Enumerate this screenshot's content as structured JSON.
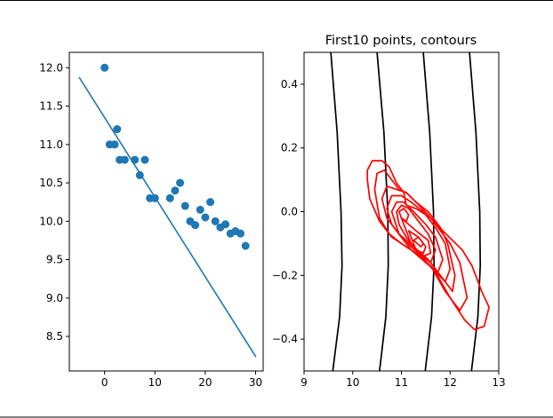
{
  "colors": {
    "background": "#ffffff",
    "frame": "#000000",
    "scatter": "#1f77b4",
    "fit_line": "#1f77b4",
    "contour_red": "#ff0000",
    "contour_black": "#000000"
  },
  "chart_data": [
    {
      "type": "scatter",
      "title": "",
      "xlabel": "",
      "ylabel": "",
      "xlim": [
        -7,
        31.5
      ],
      "ylim": [
        8.05,
        12.2
      ],
      "xticks": [
        "0",
        "10",
        "20",
        "30"
      ],
      "yticks": [
        "8.5",
        "9.0",
        "9.5",
        "10.0",
        "10.5",
        "11.0",
        "11.5",
        "12.0"
      ],
      "grid": false,
      "series": [
        {
          "kind": "scatter",
          "x": [
            0,
            1,
            2,
            2.5,
            3,
            4,
            6,
            7,
            8,
            9,
            10,
            13,
            14,
            15,
            16,
            17,
            18,
            19,
            20,
            21,
            22,
            23,
            24,
            25,
            26,
            27,
            28
          ],
          "y": [
            12.0,
            11.0,
            11.0,
            11.2,
            10.8,
            10.8,
            10.8,
            10.6,
            10.8,
            10.3,
            10.3,
            10.3,
            10.4,
            10.5,
            10.2,
            10.0,
            9.95,
            10.15,
            10.05,
            10.25,
            10.0,
            9.92,
            9.96,
            9.84,
            9.87,
            9.84,
            9.68
          ]
        },
        {
          "kind": "line",
          "x": [
            -5,
            30
          ],
          "y": [
            11.87,
            8.24
          ]
        }
      ]
    },
    {
      "type": "line",
      "subtype": "contour",
      "title": "First10 points, contours",
      "xlabel": "",
      "ylabel": "",
      "xlim": [
        9,
        13
      ],
      "ylim": [
        -0.5,
        0.5
      ],
      "xticks": [
        "9",
        "10",
        "11",
        "12",
        "13"
      ],
      "yticks": [
        "−0.4",
        "−0.2",
        "0.0",
        "0.2",
        "0.4"
      ],
      "grid": false,
      "series": [
        {
          "color": "black",
          "x": [
            9.55,
            9.68,
            9.76,
            9.78,
            9.73,
            9.59
          ],
          "y": [
            0.5,
            0.25,
            0.0,
            -0.17,
            -0.33,
            -0.5
          ]
        },
        {
          "color": "black",
          "x": [
            10.5,
            10.64,
            10.72,
            10.73,
            10.68,
            10.55
          ],
          "y": [
            0.5,
            0.25,
            0.0,
            -0.17,
            -0.33,
            -0.5
          ]
        },
        {
          "color": "black",
          "x": [
            11.45,
            11.58,
            11.66,
            11.67,
            11.62,
            11.49
          ],
          "y": [
            0.5,
            0.25,
            0.0,
            -0.17,
            -0.33,
            -0.5
          ]
        },
        {
          "color": "black",
          "x": [
            12.4,
            12.53,
            12.61,
            12.62,
            12.57,
            12.44
          ],
          "y": [
            0.5,
            0.25,
            0.0,
            -0.17,
            -0.33,
            -0.5
          ]
        },
        {
          "color": "red",
          "x": [
            10.3,
            10.3,
            10.4,
            10.6,
            10.75,
            10.9,
            11.05,
            11.1,
            11.3,
            11.6,
            11.85,
            12.05,
            12.25,
            12.45,
            12.65,
            12.8,
            12.7,
            12.5,
            12.3,
            12.0,
            11.7,
            11.4,
            11.1,
            10.8,
            10.55,
            10.35,
            10.3
          ],
          "y": [
            0.1,
            0.13,
            0.16,
            0.16,
            0.14,
            0.09,
            0.06,
            0.02,
            0.01,
            -0.02,
            -0.06,
            -0.09,
            -0.12,
            -0.17,
            -0.25,
            -0.3,
            -0.36,
            -0.37,
            -0.34,
            -0.27,
            -0.19,
            -0.14,
            -0.11,
            -0.08,
            -0.03,
            0.04,
            0.1
          ]
        },
        {
          "color": "red",
          "x": [
            10.45,
            10.5,
            10.65,
            10.8,
            10.95,
            11.1,
            11.3,
            11.55,
            11.75,
            12.0,
            12.2,
            12.35,
            12.2,
            11.9,
            11.6,
            11.3,
            11.0,
            10.75,
            10.55,
            10.45
          ],
          "y": [
            0.07,
            0.12,
            0.13,
            0.1,
            0.07,
            0.06,
            0.03,
            -0.01,
            -0.05,
            -0.1,
            -0.16,
            -0.27,
            -0.31,
            -0.25,
            -0.17,
            -0.13,
            -0.1,
            -0.07,
            -0.02,
            0.07
          ]
        },
        {
          "color": "red",
          "x": [
            10.6,
            10.7,
            10.9,
            11.1,
            11.3,
            11.55,
            11.8,
            11.95,
            12.1,
            12.05,
            11.85,
            11.55,
            11.25,
            10.95,
            10.7,
            10.6
          ],
          "y": [
            0.04,
            0.08,
            0.07,
            0.06,
            0.03,
            0.0,
            -0.05,
            -0.1,
            -0.2,
            -0.25,
            -0.21,
            -0.15,
            -0.11,
            -0.07,
            -0.02,
            0.04
          ]
        },
        {
          "color": "red",
          "x": [
            10.7,
            10.8,
            11.0,
            11.2,
            11.45,
            11.7,
            11.9,
            12.0,
            11.9,
            11.65,
            11.35,
            11.05,
            10.8,
            10.7
          ],
          "y": [
            0.01,
            0.05,
            0.05,
            0.03,
            0.0,
            -0.05,
            -0.1,
            -0.18,
            -0.22,
            -0.18,
            -0.13,
            -0.09,
            -0.04,
            0.01
          ]
        },
        {
          "color": "red",
          "x": [
            10.8,
            10.9,
            11.05,
            11.25,
            11.5,
            11.7,
            11.85,
            11.75,
            11.5,
            11.2,
            10.95,
            10.8
          ],
          "y": [
            0.0,
            0.03,
            0.03,
            0.0,
            -0.04,
            -0.08,
            -0.15,
            -0.19,
            -0.16,
            -0.12,
            -0.07,
            0.0
          ]
        },
        {
          "color": "red",
          "x": [
            10.9,
            11.0,
            11.15,
            11.35,
            11.55,
            11.7,
            11.6,
            11.35,
            11.1,
            10.95,
            10.9
          ],
          "y": [
            0.0,
            0.02,
            0.01,
            -0.03,
            -0.07,
            -0.12,
            -0.16,
            -0.13,
            -0.08,
            -0.04,
            0.0
          ]
        },
        {
          "color": "red",
          "x": [
            10.95,
            11.05,
            11.15,
            11.1,
            11.0,
            10.95
          ],
          "y": [
            0.0,
            0.01,
            -0.01,
            -0.03,
            -0.02,
            0.0
          ]
        },
        {
          "color": "red",
          "x": [
            11.0,
            11.3,
            11.55,
            11.6,
            11.45,
            11.2,
            11.0
          ],
          "y": [
            -0.02,
            -0.06,
            -0.09,
            -0.13,
            -0.14,
            -0.1,
            -0.02
          ]
        },
        {
          "color": "red",
          "x": [
            11.15,
            11.35,
            11.5,
            11.45,
            11.3,
            11.15
          ],
          "y": [
            -0.06,
            -0.08,
            -0.11,
            -0.13,
            -0.12,
            -0.06
          ]
        },
        {
          "color": "red",
          "x": [
            11.25,
            11.35,
            11.45,
            11.4,
            11.25
          ],
          "y": [
            -0.09,
            -0.08,
            -0.1,
            -0.11,
            -0.09
          ]
        }
      ]
    }
  ]
}
